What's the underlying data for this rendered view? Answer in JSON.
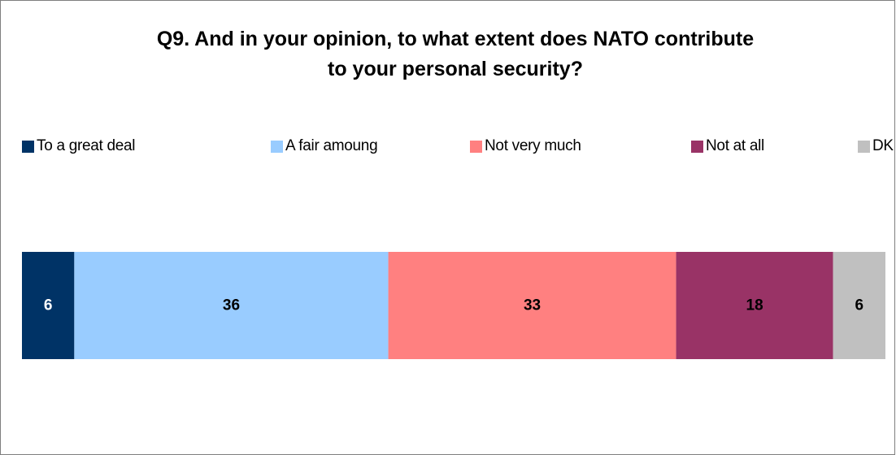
{
  "chart_data": {
    "type": "bar",
    "orientation": "horizontal",
    "stacked": true,
    "title": [
      "Q9. And in your opinion, to what extent does NATO contribute",
      "to your personal security?"
    ],
    "categories": [
      ""
    ],
    "series": [
      {
        "name": "To a great deal",
        "values": [
          6
        ],
        "color": "#003366",
        "label_color": "#ffffff"
      },
      {
        "name": "A fair amoung",
        "values": [
          36
        ],
        "color": "#99ccff",
        "label_color": "#000000"
      },
      {
        "name": "Not very much",
        "values": [
          33
        ],
        "color": "#ff8080",
        "label_color": "#000000"
      },
      {
        "name": "Not at all",
        "values": [
          18
        ],
        "color": "#993366",
        "label_color": "#000000"
      },
      {
        "name": "DK",
        "values": [
          6
        ],
        "color": "#c0c0c0",
        "label_color": "#000000"
      }
    ],
    "legend_position": "top",
    "grid": false,
    "xlim": [
      0,
      99
    ]
  }
}
